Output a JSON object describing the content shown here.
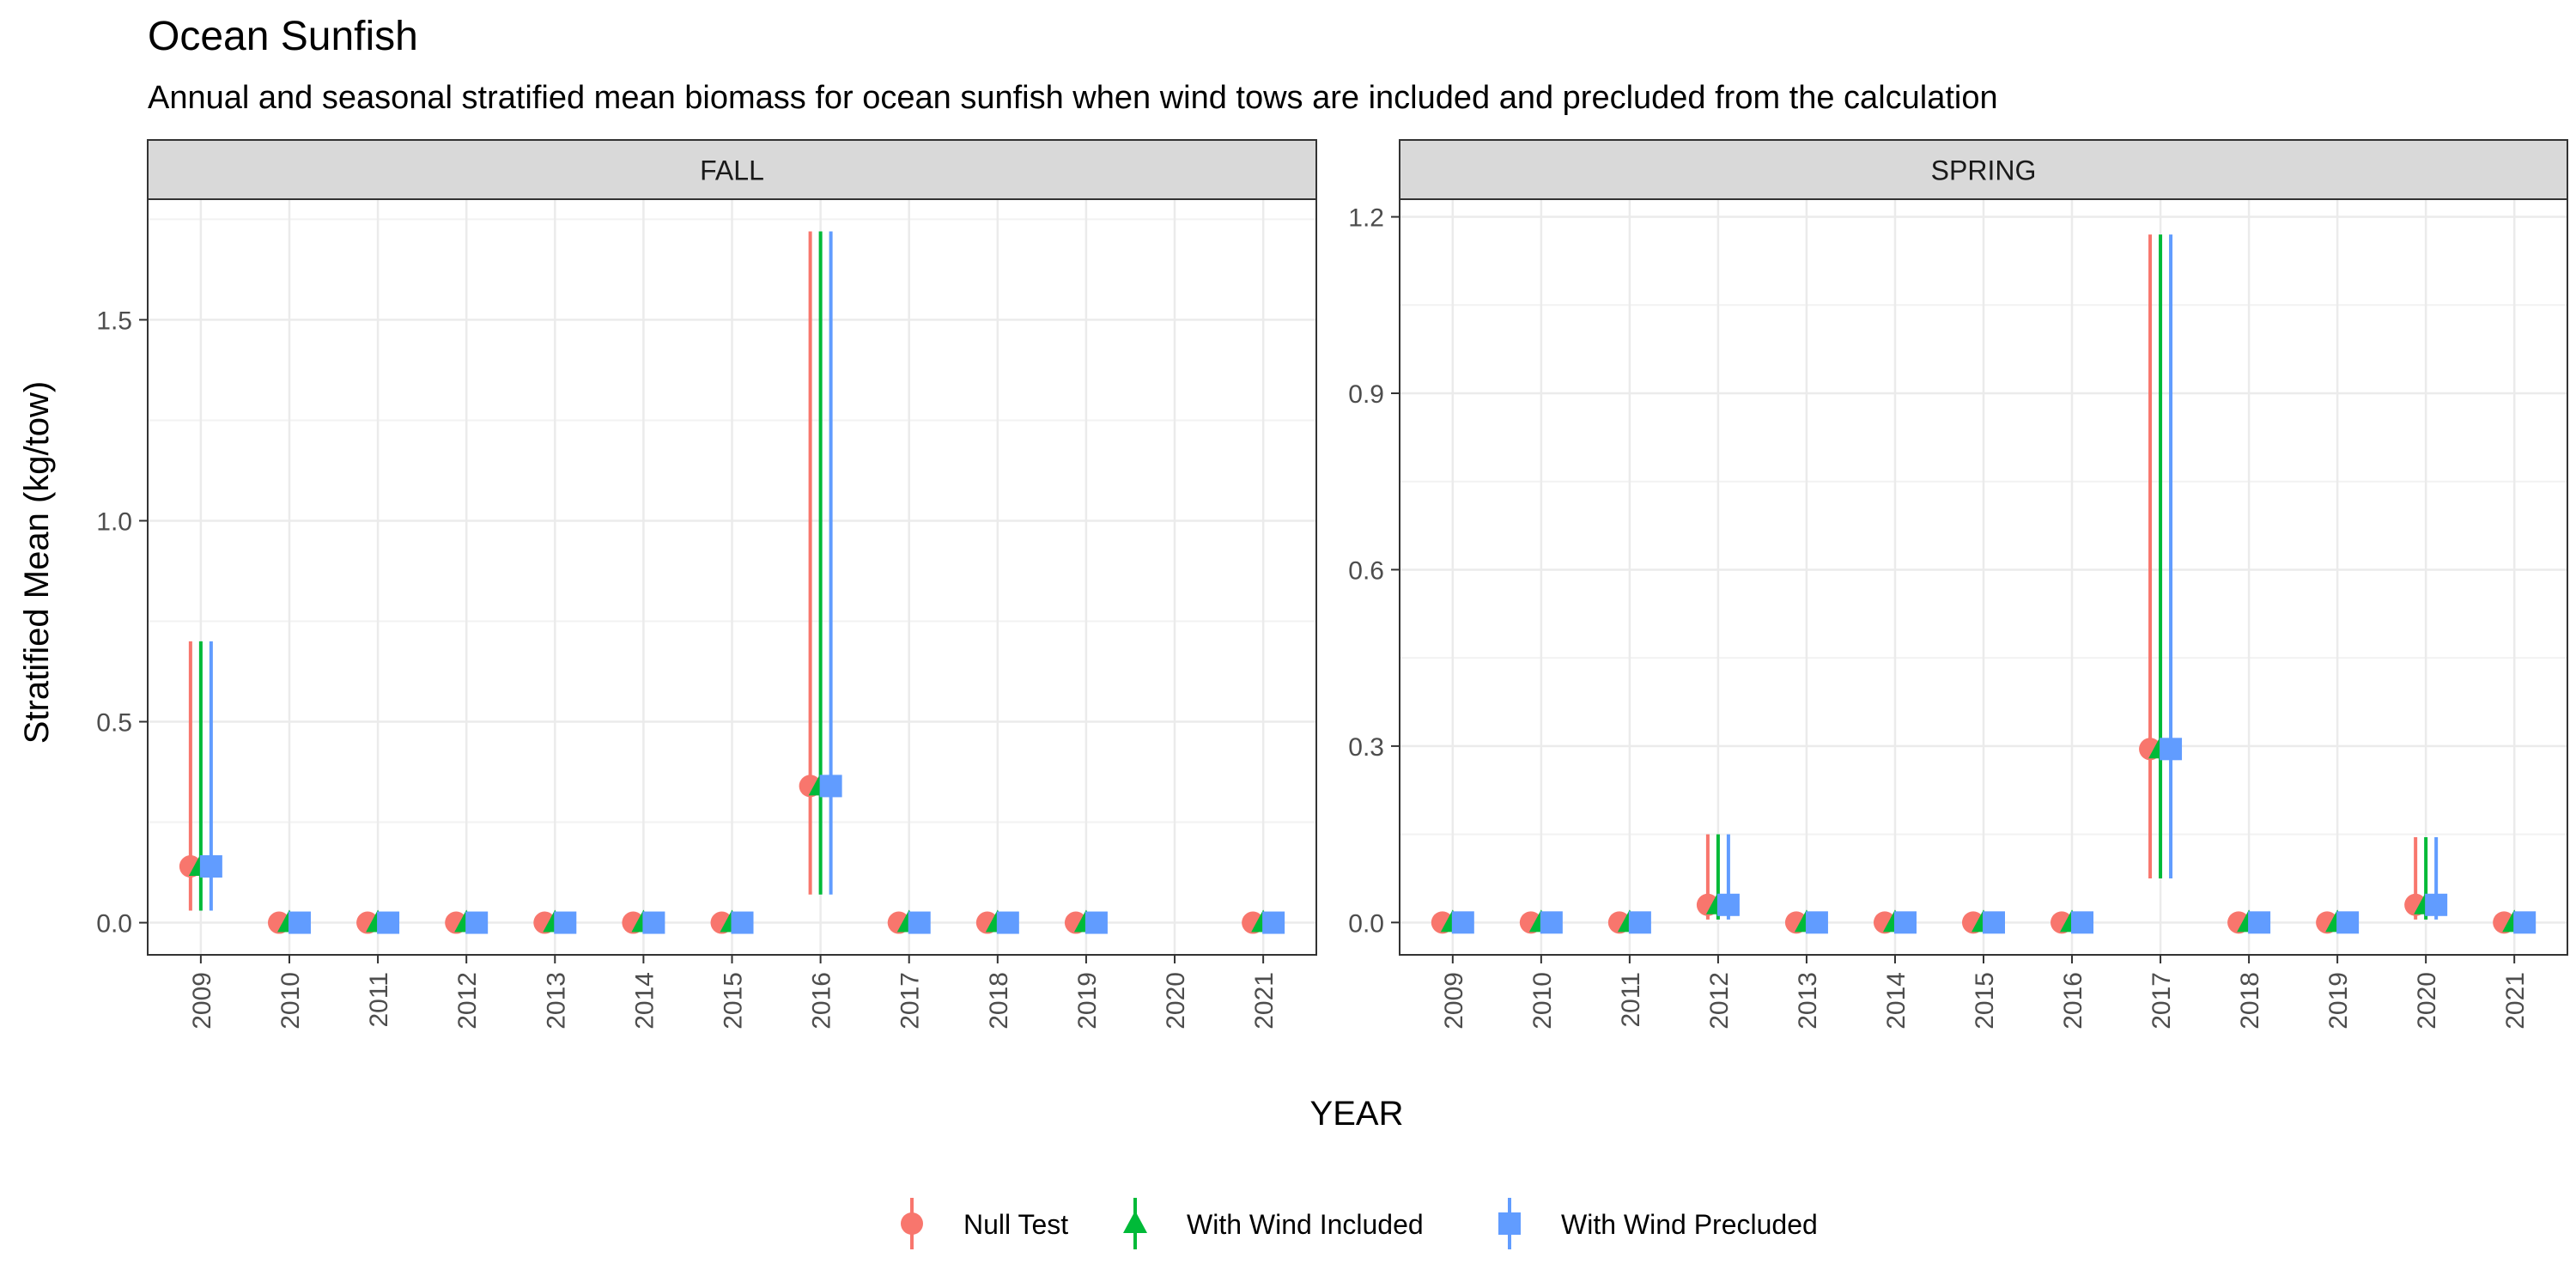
{
  "title": "Ocean Sunfish",
  "subtitle": "Annual and seasonal stratified mean biomass for ocean sunfish when wind tows are included and precluded from the calculation",
  "xlabel": "YEAR",
  "ylabel": "Stratified Mean (kg/tow)",
  "colors": {
    "null": "#F8766D",
    "included": "#00BA38",
    "precluded": "#619CFF"
  },
  "legend": {
    "placement": "bottom",
    "items": [
      {
        "key": "null",
        "label": "Null Test",
        "shape": "circle"
      },
      {
        "key": "included",
        "label": "With Wind Included",
        "shape": "triangle"
      },
      {
        "key": "precluded",
        "label": "With Wind Precluded",
        "shape": "square"
      }
    ]
  },
  "chart_data": [
    {
      "type": "scatter",
      "panel": "FALL",
      "categories": [
        "2009",
        "2010",
        "2011",
        "2012",
        "2013",
        "2014",
        "2015",
        "2016",
        "2017",
        "2018",
        "2019",
        "2020",
        "2021"
      ],
      "ylim": [
        -0.08,
        1.8
      ],
      "yticks": [
        "0.0",
        "0.5",
        "1.0",
        "1.5"
      ],
      "ytick_values": [
        0,
        0.5,
        1.0,
        1.5
      ],
      "grid": true,
      "series": [
        {
          "key": "null",
          "name": "Null Test",
          "values": [
            0.14,
            0,
            0,
            0,
            0,
            0,
            0,
            0.34,
            0,
            0,
            0,
            null,
            0
          ],
          "lower": [
            0.03,
            0,
            0,
            0,
            0,
            0,
            0,
            0.07,
            0,
            0,
            0,
            null,
            0
          ],
          "upper": [
            0.7,
            0,
            0,
            0,
            0,
            0,
            0,
            1.72,
            0,
            0,
            0,
            null,
            0
          ]
        },
        {
          "key": "included",
          "name": "With Wind Included",
          "values": [
            0.14,
            0,
            0,
            0,
            0,
            0,
            0,
            0.34,
            0,
            0,
            0,
            null,
            0
          ],
          "lower": [
            0.03,
            0,
            0,
            0,
            0,
            0,
            0,
            0.07,
            0,
            0,
            0,
            null,
            0
          ],
          "upper": [
            0.7,
            0,
            0,
            0,
            0,
            0,
            0,
            1.72,
            0,
            0,
            0,
            null,
            0
          ]
        },
        {
          "key": "precluded",
          "name": "With Wind Precluded",
          "values": [
            0.14,
            0,
            0,
            0,
            0,
            0,
            0,
            0.34,
            0,
            0,
            0,
            null,
            0
          ],
          "lower": [
            0.03,
            0,
            0,
            0,
            0,
            0,
            0,
            0.07,
            0,
            0,
            0,
            null,
            0
          ],
          "upper": [
            0.7,
            0,
            0,
            0,
            0,
            0,
            0,
            1.72,
            0,
            0,
            0,
            null,
            0
          ]
        }
      ]
    },
    {
      "type": "scatter",
      "panel": "SPRING",
      "categories": [
        "2009",
        "2010",
        "2011",
        "2012",
        "2013",
        "2014",
        "2015",
        "2016",
        "2017",
        "2018",
        "2019",
        "2020",
        "2021"
      ],
      "ylim": [
        -0.055,
        1.23
      ],
      "yticks": [
        "0.0",
        "0.3",
        "0.6",
        "0.9",
        "1.2"
      ],
      "ytick_values": [
        0,
        0.3,
        0.6,
        0.9,
        1.2
      ],
      "grid": true,
      "series": [
        {
          "key": "null",
          "name": "Null Test",
          "values": [
            0,
            0,
            0,
            0.03,
            0,
            0,
            0,
            0,
            0.295,
            0,
            0,
            0.03,
            0
          ],
          "lower": [
            0,
            0,
            0,
            0.005,
            0,
            0,
            0,
            0,
            0.075,
            0,
            0,
            0.005,
            0
          ],
          "upper": [
            0,
            0,
            0,
            0.15,
            0,
            0,
            0,
            0,
            1.17,
            0,
            0,
            0.145,
            0
          ]
        },
        {
          "key": "included",
          "name": "With Wind Included",
          "values": [
            0,
            0,
            0,
            0.03,
            0,
            0,
            0,
            0,
            0.295,
            0,
            0,
            0.03,
            0
          ],
          "lower": [
            0,
            0,
            0,
            0.005,
            0,
            0,
            0,
            0,
            0.075,
            0,
            0,
            0.005,
            0
          ],
          "upper": [
            0,
            0,
            0,
            0.15,
            0,
            0,
            0,
            0,
            1.17,
            0,
            0,
            0.145,
            0
          ]
        },
        {
          "key": "precluded",
          "name": "With Wind Precluded",
          "values": [
            0,
            0,
            0,
            0.03,
            0,
            0,
            0,
            0,
            0.295,
            0,
            0,
            0.03,
            0
          ],
          "lower": [
            0,
            0,
            0,
            0.005,
            0,
            0,
            0,
            0,
            0.075,
            0,
            0,
            0.005,
            0
          ],
          "upper": [
            0,
            0,
            0,
            0.15,
            0,
            0,
            0,
            0,
            1.17,
            0,
            0,
            0.145,
            0
          ]
        }
      ]
    }
  ]
}
